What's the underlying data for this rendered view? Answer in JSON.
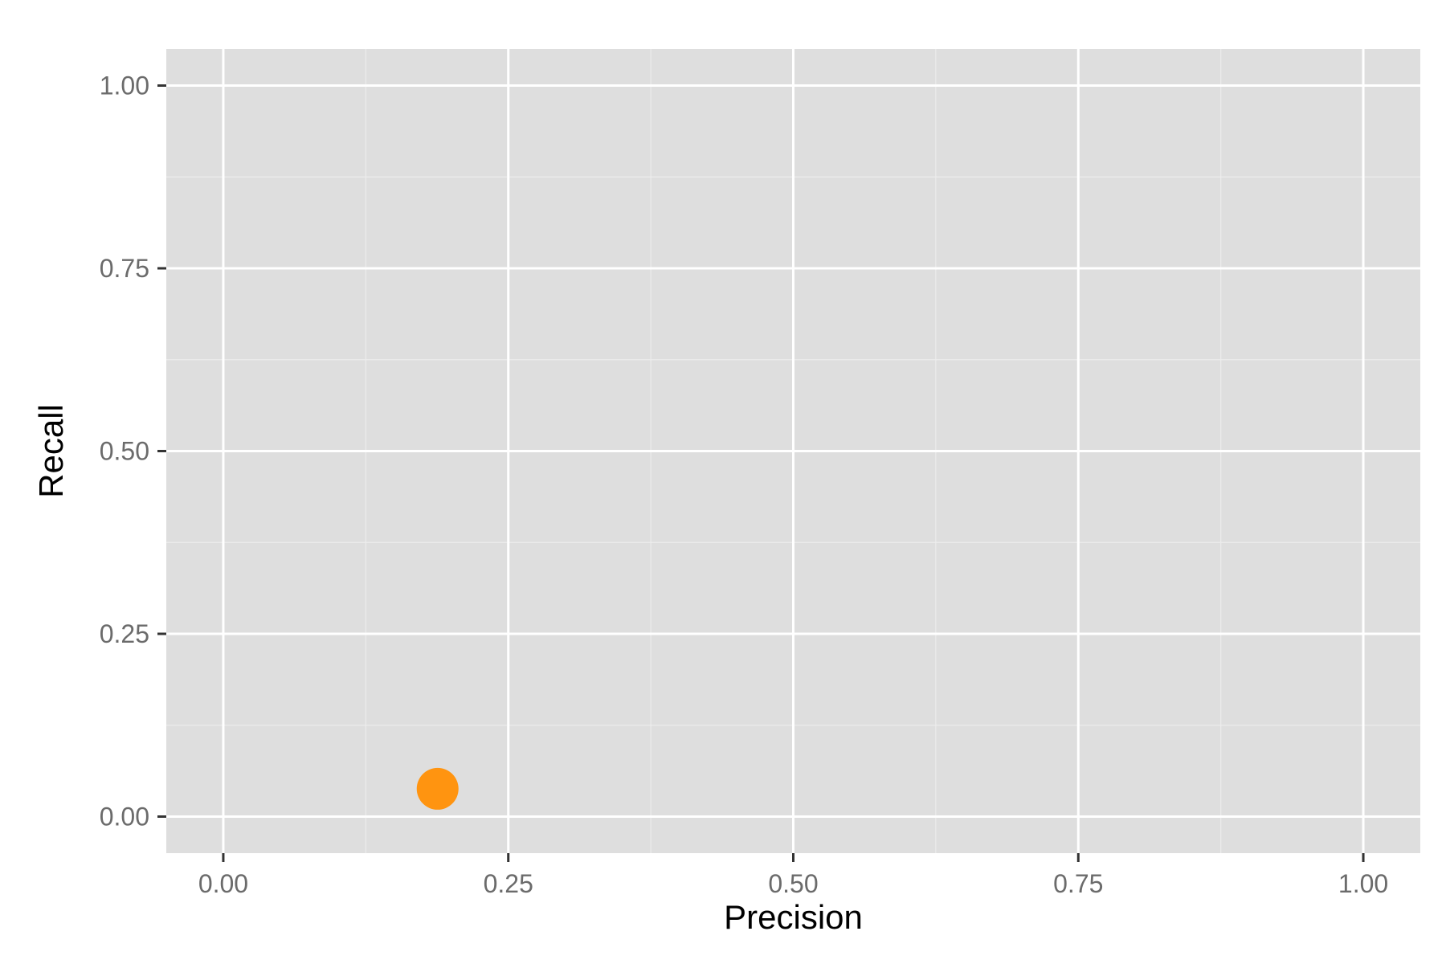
{
  "chart_data": {
    "type": "scatter",
    "title": "",
    "xlabel": "Precision",
    "ylabel": "Recall",
    "xlim": [
      -0.05,
      1.05
    ],
    "ylim": [
      -0.05,
      1.05
    ],
    "x_ticks": [
      0.0,
      0.25,
      0.5,
      0.75,
      1.0
    ],
    "y_ticks": [
      0.0,
      0.25,
      0.5,
      0.75,
      1.0
    ],
    "x_tick_labels": [
      "0.00",
      "0.25",
      "0.50",
      "0.75",
      "1.00"
    ],
    "y_tick_labels": [
      "0.00",
      "0.25",
      "0.50",
      "0.75",
      "1.00"
    ],
    "grid": true,
    "series": [
      {
        "points": [
          {
            "x": 0.188,
            "y": 0.038
          }
        ],
        "color": "#ff9410"
      }
    ]
  },
  "colors": {
    "panel": "#dedede",
    "grid_major": "#ffffff",
    "grid_minor": "#ececec",
    "tick_mark": "#333333"
  }
}
